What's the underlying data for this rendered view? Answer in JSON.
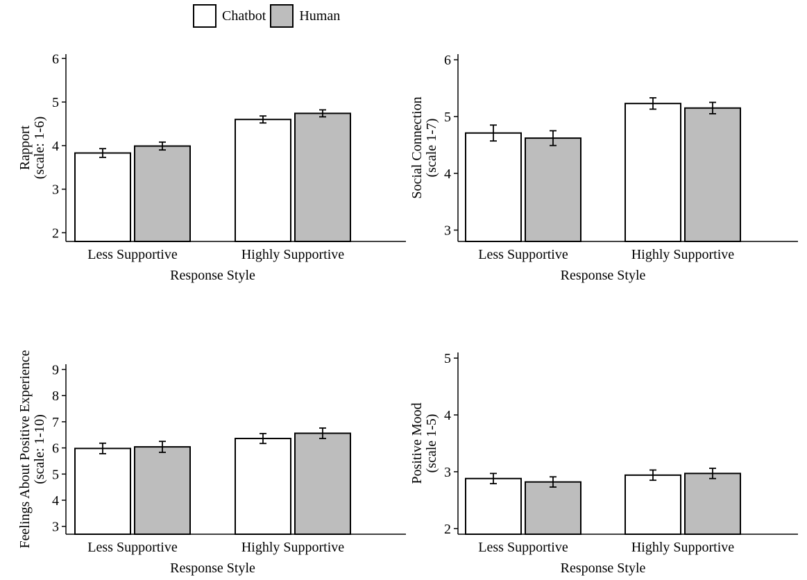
{
  "legend": [
    {
      "name": "Chatbot",
      "color": "#ffffff"
    },
    {
      "name": "Human",
      "color": "#bdbdbd"
    }
  ],
  "chart_data": [
    {
      "type": "bar",
      "categories": [
        "Less Supportive",
        "Highly Supportive"
      ],
      "series": [
        {
          "name": "Chatbot",
          "values": [
            3.83,
            4.6
          ],
          "error": [
            0.1,
            0.08
          ]
        },
        {
          "name": "Human",
          "values": [
            3.99,
            4.74
          ],
          "error": [
            0.09,
            0.08
          ]
        }
      ],
      "xlabel": "Response Style",
      "ylabel": [
        "Rapport",
        "(scale: 1-6)"
      ],
      "ylim": [
        1.8,
        6.1
      ],
      "yticks": [
        2,
        3,
        4,
        5,
        6
      ]
    },
    {
      "type": "bar",
      "categories": [
        "Less Supportive",
        "Highly Supportive"
      ],
      "series": [
        {
          "name": "Chatbot",
          "values": [
            4.71,
            5.23
          ],
          "error": [
            0.14,
            0.1
          ]
        },
        {
          "name": "Human",
          "values": [
            4.62,
            5.15
          ],
          "error": [
            0.13,
            0.1
          ]
        }
      ],
      "xlabel": "Response Style",
      "ylabel": [
        "Social Connection",
        "(scale 1-7)"
      ],
      "ylim": [
        2.8,
        6.1
      ],
      "yticks": [
        3,
        4,
        5,
        6
      ]
    },
    {
      "type": "bar",
      "categories": [
        "Less Supportive",
        "Highly Supportive"
      ],
      "series": [
        {
          "name": "Chatbot",
          "values": [
            5.98,
            6.36
          ],
          "error": [
            0.2,
            0.19
          ]
        },
        {
          "name": "Human",
          "values": [
            6.04,
            6.56
          ],
          "error": [
            0.21,
            0.2
          ]
        }
      ],
      "xlabel": "Response Style",
      "ylabel": [
        "Feelings About Positive Experience",
        "(scale: 1-10)"
      ],
      "ylim": [
        2.7,
        9.2
      ],
      "yticks": [
        3,
        4,
        5,
        6,
        7,
        8,
        9
      ]
    },
    {
      "type": "bar",
      "categories": [
        "Less Supportive",
        "Highly Supportive"
      ],
      "series": [
        {
          "name": "Chatbot",
          "values": [
            2.88,
            2.94
          ],
          "error": [
            0.09,
            0.09
          ]
        },
        {
          "name": "Human",
          "values": [
            2.82,
            2.97
          ],
          "error": [
            0.09,
            0.09
          ]
        }
      ],
      "xlabel": "Response Style",
      "ylabel": [
        "Positive Mood",
        "(scale 1-5)"
      ],
      "ylim": [
        1.9,
        5.1
      ],
      "yticks": [
        2,
        3,
        4,
        5
      ]
    }
  ]
}
